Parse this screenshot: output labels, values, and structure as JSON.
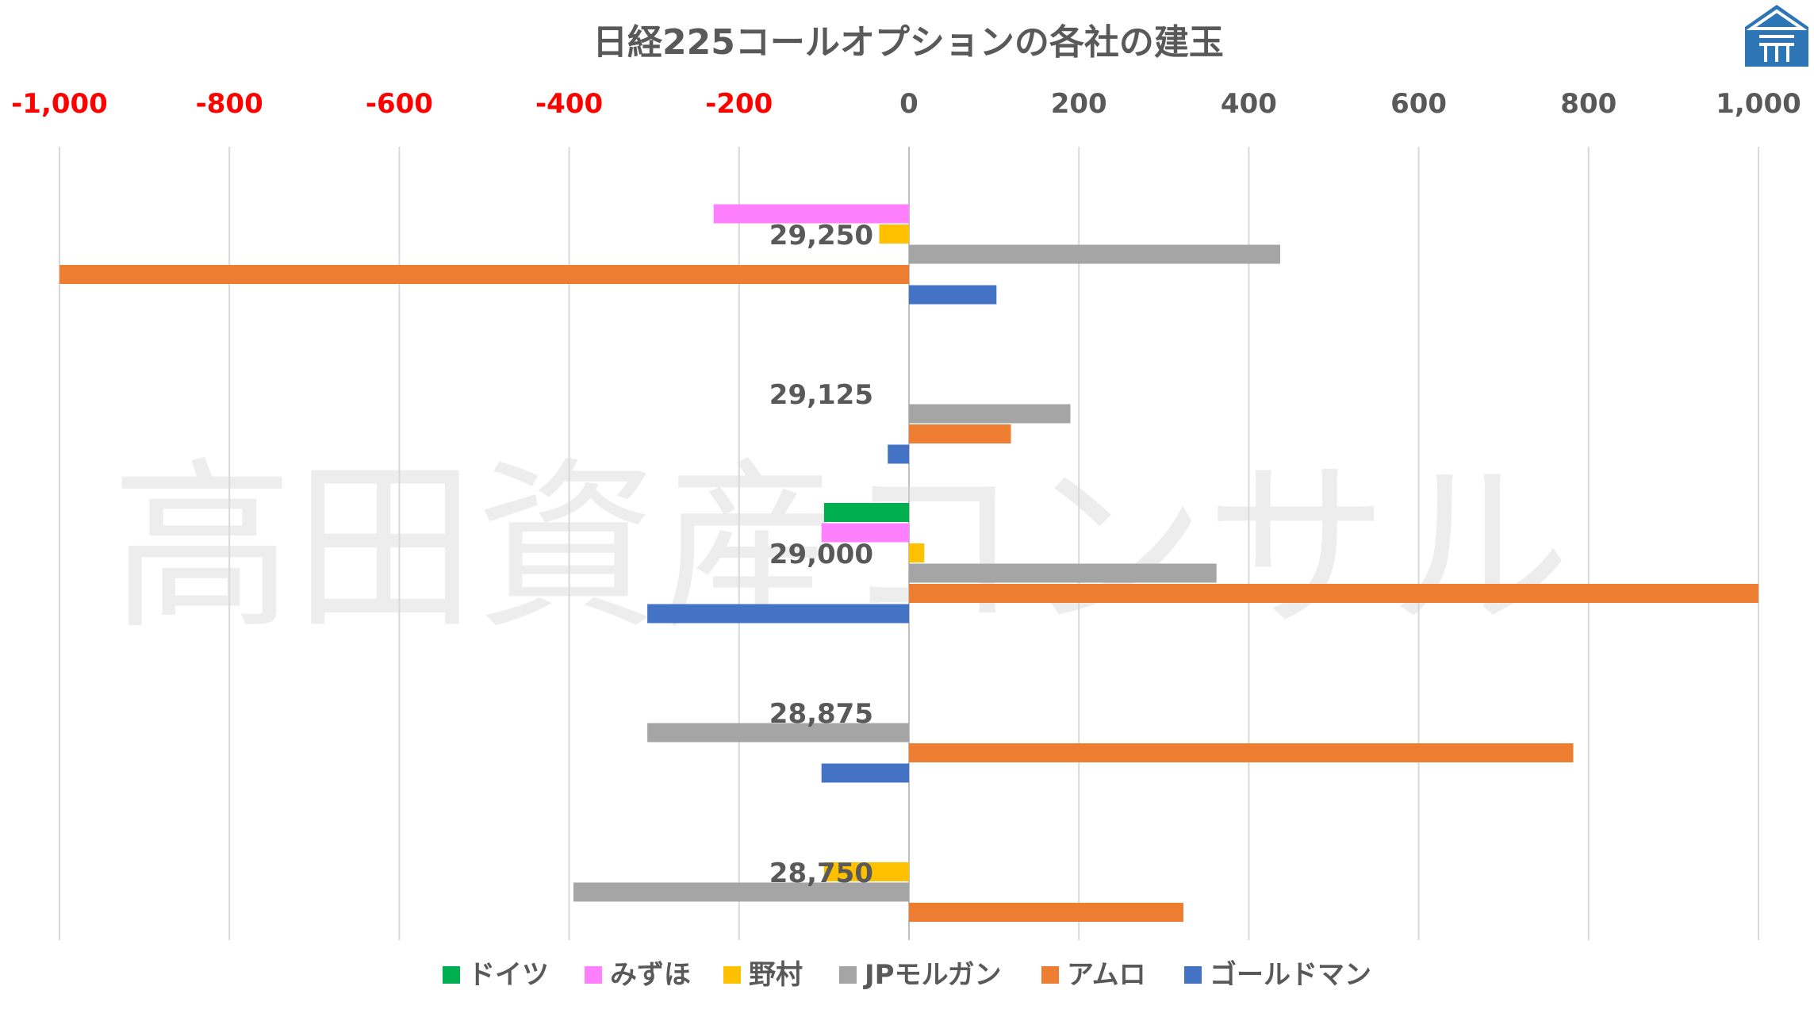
{
  "chart_data": {
    "type": "bar",
    "orientation": "horizontal",
    "title": "日経225コールオプションの各社の建玉",
    "categories": [
      "29,250",
      "29,125",
      "29,000",
      "28,875",
      "28,750"
    ],
    "series": [
      {
        "name": "ドイツ",
        "color": "#00b050",
        "values": [
          0,
          0,
          -100,
          0,
          0
        ]
      },
      {
        "name": "みずほ",
        "color": "#ff80ff",
        "values": [
          -230,
          0,
          -103,
          0,
          0
        ]
      },
      {
        "name": "野村",
        "color": "#ffc000",
        "values": [
          -35,
          0,
          18,
          0,
          -100
        ]
      },
      {
        "name": "JPモルガン",
        "color": "#a5a5a5",
        "values": [
          437,
          190,
          362,
          -308,
          -395
        ]
      },
      {
        "name": "アムロ",
        "color": "#ed7d31",
        "values": [
          -1000,
          120,
          1000,
          782,
          323
        ]
      },
      {
        "name": "ゴールドマン",
        "color": "#4472c4",
        "values": [
          103,
          -25,
          -308,
          -103,
          0
        ]
      }
    ],
    "xlim": [
      -1000,
      1000
    ],
    "xticks": [
      {
        "value": -1000,
        "label": "-1,000"
      },
      {
        "value": -800,
        "label": "-800"
      },
      {
        "value": -600,
        "label": "-600"
      },
      {
        "value": -400,
        "label": "-400"
      },
      {
        "value": -200,
        "label": "-200"
      },
      {
        "value": 0,
        "label": "0"
      },
      {
        "value": 200,
        "label": "200"
      },
      {
        "value": 400,
        "label": "400"
      },
      {
        "value": 600,
        "label": "600"
      },
      {
        "value": 800,
        "label": "800"
      },
      {
        "value": 1000,
        "label": "1,000"
      }
    ],
    "negative_tick_color": "#ff0000",
    "positive_tick_color": "#595959",
    "x_axis_position": "top",
    "grid": true,
    "legend_position": "bottom"
  },
  "watermark": "高田資産コンサル",
  "logo_icon": "house-logo-icon"
}
